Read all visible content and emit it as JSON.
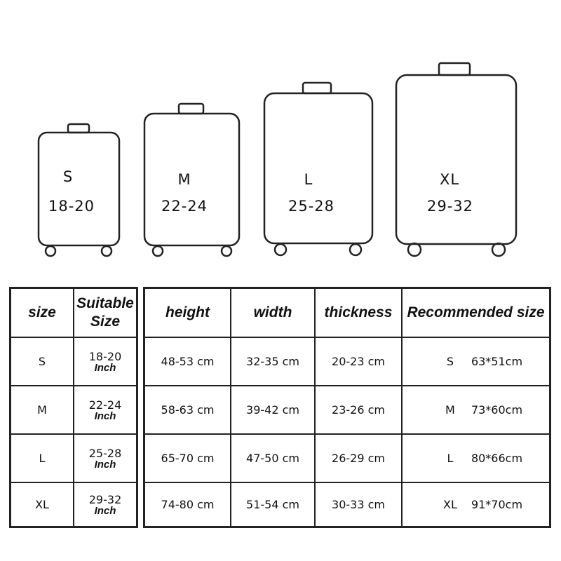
{
  "suitcases": [
    {
      "size": "S",
      "range": "18-20"
    },
    {
      "size": "M",
      "range": "22-24"
    },
    {
      "size": "L",
      "range": "25-28"
    },
    {
      "size": "XL",
      "range": "29-32"
    }
  ],
  "left_table": {
    "headers": [
      "size",
      "Suitable Size"
    ],
    "unit": "Inch",
    "rows": [
      {
        "size": "S",
        "suitable": "18-20"
      },
      {
        "size": "M",
        "suitable": "22-24"
      },
      {
        "size": "L",
        "suitable": "25-28"
      },
      {
        "size": "XL",
        "suitable": "29-32"
      }
    ]
  },
  "right_table": {
    "headers": [
      "height",
      "width",
      "thickness",
      "Recommended size"
    ],
    "rows": [
      {
        "height": "48-53 cm",
        "width": "32-35 cm",
        "thickness": "20-23 cm",
        "rec_size": "S",
        "rec_dims": "63*51cm"
      },
      {
        "height": "58-63 cm",
        "width": "39-42 cm",
        "thickness": "23-26 cm",
        "rec_size": "M",
        "rec_dims": "73*60cm"
      },
      {
        "height": "65-70 cm",
        "width": "47-50 cm",
        "thickness": "26-29 cm",
        "rec_size": "L",
        "rec_dims": "80*66cm"
      },
      {
        "height": "74-80 cm",
        "width": "51-54 cm",
        "thickness": "30-33 cm",
        "rec_size": "XL",
        "rec_dims": "91*70cm"
      }
    ]
  }
}
